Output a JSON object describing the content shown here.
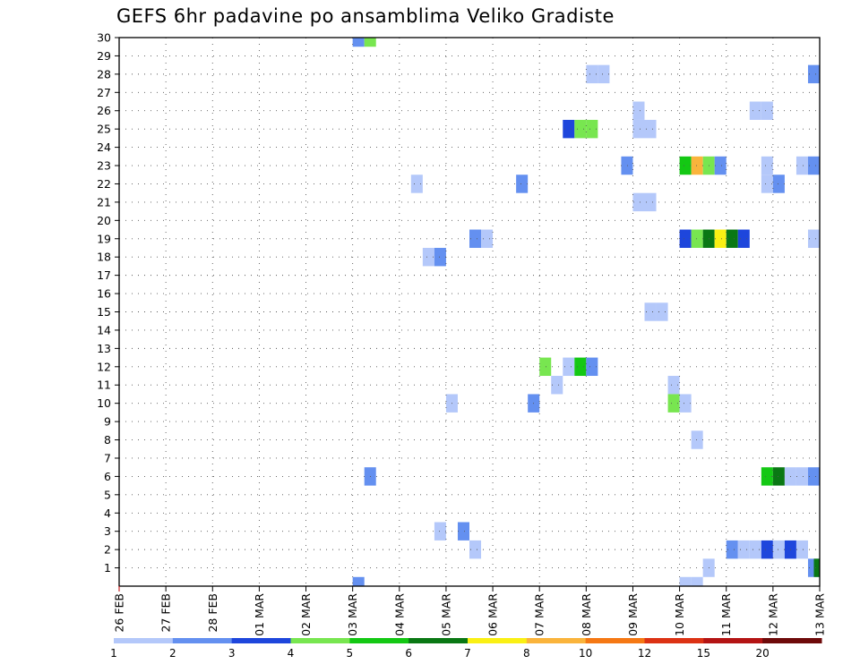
{
  "chart_data": {
    "type": "heatmap",
    "title": "GEFS 6hr padavine po ansamblima Veliko Gradiste",
    "x_unit": "6h step (0 = 26 FEB 00Z)",
    "x_range": [
      0,
      60
    ],
    "y_range": [
      0,
      30
    ],
    "x_tick_labels": [
      "26 FEB",
      "27 FEB",
      "28 FEB",
      "01 MAR",
      "02 MAR",
      "03 MAR",
      "04 MAR",
      "05 MAR",
      "06 MAR",
      "07 MAR",
      "08 MAR",
      "09 MAR",
      "10 MAR",
      "11 MAR",
      "12 MAR",
      "13 MAR"
    ],
    "y_tick_labels": [
      "1",
      "2",
      "3",
      "4",
      "5",
      "6",
      "7",
      "8",
      "9",
      "10",
      "11",
      "12",
      "13",
      "14",
      "15",
      "16",
      "17",
      "18",
      "19",
      "20",
      "21",
      "22",
      "23",
      "24",
      "25",
      "26",
      "27",
      "28",
      "29",
      "30"
    ],
    "grid": true,
    "legend": {
      "placement": "bottom",
      "colors": [
        "#b4c8fa",
        "#6490f0",
        "#1e46dc",
        "#78e650",
        "#14c814",
        "#0a7814",
        "#faf014",
        "#fab43c",
        "#f57814",
        "#dc3214",
        "#b41414",
        "#6e0a0a"
      ],
      "labels": [
        "1",
        "2",
        "3",
        "4",
        "5",
        "6",
        "7",
        "8",
        "10",
        "12",
        "15",
        "20"
      ]
    },
    "cells": [
      {
        "x": 20.5,
        "y": 30,
        "v": 2
      },
      {
        "x": 21.5,
        "y": 30,
        "v": 4
      },
      {
        "x": 20.5,
        "y": 0,
        "v": 2
      },
      {
        "x": 40.5,
        "y": 28,
        "v": 1
      },
      {
        "x": 41.5,
        "y": 28,
        "v": 1
      },
      {
        "x": 59.5,
        "y": 28,
        "v": 2
      },
      {
        "x": 44.5,
        "y": 26,
        "v": 1
      },
      {
        "x": 54.5,
        "y": 26,
        "v": 1
      },
      {
        "x": 55.5,
        "y": 26,
        "v": 1
      },
      {
        "x": 38.5,
        "y": 25,
        "v": 3
      },
      {
        "x": 39.5,
        "y": 25,
        "v": 4
      },
      {
        "x": 40.5,
        "y": 25,
        "v": 4
      },
      {
        "x": 44.5,
        "y": 25,
        "v": 1
      },
      {
        "x": 45.5,
        "y": 25,
        "v": 1
      },
      {
        "x": 43.5,
        "y": 23,
        "v": 2
      },
      {
        "x": 48.5,
        "y": 23,
        "v": 5
      },
      {
        "x": 49.5,
        "y": 23,
        "v": 8
      },
      {
        "x": 50.5,
        "y": 23,
        "v": 4
      },
      {
        "x": 51.5,
        "y": 23,
        "v": 2
      },
      {
        "x": 55.5,
        "y": 23,
        "v": 1
      },
      {
        "x": 58.5,
        "y": 23,
        "v": 1
      },
      {
        "x": 59.5,
        "y": 23,
        "v": 2
      },
      {
        "x": 25.5,
        "y": 22,
        "v": 1
      },
      {
        "x": 34.5,
        "y": 22,
        "v": 2
      },
      {
        "x": 55.5,
        "y": 22,
        "v": 1
      },
      {
        "x": 56.5,
        "y": 22,
        "v": 2
      },
      {
        "x": 44.5,
        "y": 21,
        "v": 1
      },
      {
        "x": 45.5,
        "y": 21,
        "v": 1
      },
      {
        "x": 30.5,
        "y": 19,
        "v": 2
      },
      {
        "x": 31.5,
        "y": 19,
        "v": 1
      },
      {
        "x": 48.5,
        "y": 19,
        "v": 3
      },
      {
        "x": 49.5,
        "y": 19,
        "v": 4
      },
      {
        "x": 50.5,
        "y": 19,
        "v": 6
      },
      {
        "x": 51.5,
        "y": 19,
        "v": 7
      },
      {
        "x": 52.5,
        "y": 19,
        "v": 6
      },
      {
        "x": 53.5,
        "y": 19,
        "v": 3
      },
      {
        "x": 59.5,
        "y": 19,
        "v": 1
      },
      {
        "x": 26.5,
        "y": 18,
        "v": 1
      },
      {
        "x": 27.5,
        "y": 18,
        "v": 2
      },
      {
        "x": 45.5,
        "y": 15,
        "v": 1
      },
      {
        "x": 46.5,
        "y": 15,
        "v": 1
      },
      {
        "x": 36.5,
        "y": 12,
        "v": 4
      },
      {
        "x": 38.5,
        "y": 12,
        "v": 1
      },
      {
        "x": 39.5,
        "y": 12,
        "v": 5
      },
      {
        "x": 40.5,
        "y": 12,
        "v": 2
      },
      {
        "x": 37.5,
        "y": 11,
        "v": 1
      },
      {
        "x": 47.5,
        "y": 11,
        "v": 1
      },
      {
        "x": 28.5,
        "y": 10,
        "v": 1
      },
      {
        "x": 35.5,
        "y": 10,
        "v": 2
      },
      {
        "x": 47.5,
        "y": 10,
        "v": 4
      },
      {
        "x": 48.5,
        "y": 10,
        "v": 1
      },
      {
        "x": 49.5,
        "y": 8,
        "v": 1
      },
      {
        "x": 21.5,
        "y": 6,
        "v": 2
      },
      {
        "x": 55.5,
        "y": 6,
        "v": 5
      },
      {
        "x": 56.5,
        "y": 6,
        "v": 6
      },
      {
        "x": 57.5,
        "y": 6,
        "v": 1
      },
      {
        "x": 58.5,
        "y": 6,
        "v": 1
      },
      {
        "x": 59.5,
        "y": 6,
        "v": 2
      },
      {
        "x": 27.5,
        "y": 3,
        "v": 1
      },
      {
        "x": 29.5,
        "y": 3,
        "v": 2
      },
      {
        "x": 30.5,
        "y": 2,
        "v": 1
      },
      {
        "x": 52.5,
        "y": 2,
        "v": 2
      },
      {
        "x": 53.5,
        "y": 2,
        "v": 1
      },
      {
        "x": 54.5,
        "y": 2,
        "v": 1
      },
      {
        "x": 55.5,
        "y": 2,
        "v": 3
      },
      {
        "x": 56.5,
        "y": 2,
        "v": 1
      },
      {
        "x": 57.5,
        "y": 2,
        "v": 3
      },
      {
        "x": 58.5,
        "y": 2,
        "v": 1
      },
      {
        "x": 50.5,
        "y": 1,
        "v": 1
      },
      {
        "x": 59.5,
        "y": 1,
        "v": 2
      },
      {
        "x": 60,
        "y": 1,
        "v": 6
      },
      {
        "x": 48.5,
        "y": 0,
        "v": 1
      },
      {
        "x": 49.5,
        "y": 0,
        "v": 1
      }
    ]
  }
}
